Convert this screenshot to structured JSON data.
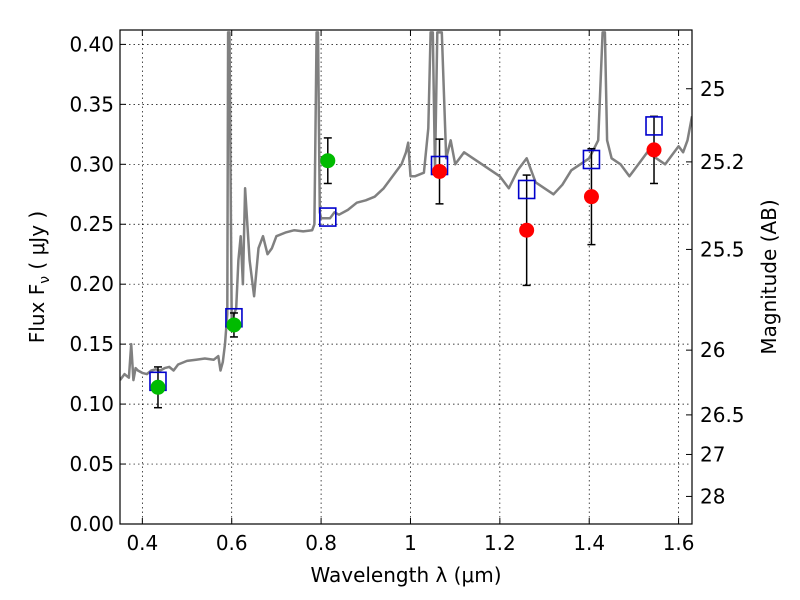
{
  "chart_data": {
    "type": "scatter",
    "xlabel": "Wavelength  λ (μm)",
    "ylabel": "Flux  F",
    "ylabel_sub": "ν",
    "ylabel_unit": "  ( μJy )",
    "right_ylabel": "Magnitude (AB)",
    "xlim": [
      0.35,
      1.63
    ],
    "ylim": [
      0.0,
      0.412
    ],
    "grid": true,
    "x_ticks": [
      0.4,
      0.6,
      0.8,
      1.0,
      1.2,
      1.4,
      1.6
    ],
    "x_tick_labels": [
      "0.4",
      "0.6",
      "0.8",
      "1",
      "1.2",
      "1.4",
      "1.6"
    ],
    "y_ticks": [
      0.0,
      0.05,
      0.1,
      0.15,
      0.2,
      0.25,
      0.3,
      0.35,
      0.4
    ],
    "y_tick_labels": [
      "0.00",
      "0.05",
      "0.10",
      "0.15",
      "0.20",
      "0.25",
      "0.30",
      "0.35",
      "0.40"
    ],
    "right_ticks": [
      {
        "label": "25",
        "flux": 0.363
      },
      {
        "label": "25.2",
        "flux": 0.302
      },
      {
        "label": "25.5",
        "flux": 0.229
      },
      {
        "label": "26",
        "flux": 0.145
      },
      {
        "label": "26.5",
        "flux": 0.091
      },
      {
        "label": "27",
        "flux": 0.058
      },
      {
        "label": "28",
        "flux": 0.023
      }
    ],
    "series": [
      {
        "marker": "line",
        "color": "#808080",
        "x": [
          0.35,
          0.36,
          0.37,
          0.375,
          0.38,
          0.385,
          0.39,
          0.4,
          0.41,
          0.42,
          0.43,
          0.44,
          0.45,
          0.46,
          0.47,
          0.48,
          0.5,
          0.52,
          0.54,
          0.56,
          0.57,
          0.575,
          0.58,
          0.585,
          0.59,
          0.592,
          0.595,
          0.6,
          0.61,
          0.615,
          0.62,
          0.625,
          0.63,
          0.64,
          0.65,
          0.66,
          0.67,
          0.68,
          0.69,
          0.7,
          0.72,
          0.74,
          0.76,
          0.78,
          0.785,
          0.79,
          0.793,
          0.797,
          0.8,
          0.82,
          0.83,
          0.84,
          0.86,
          0.88,
          0.9,
          0.92,
          0.94,
          0.96,
          0.98,
          0.99,
          0.995,
          1.0,
          1.01,
          1.03,
          1.04,
          1.045,
          1.05,
          1.055,
          1.06,
          1.07,
          1.08,
          1.09,
          1.1,
          1.12,
          1.14,
          1.16,
          1.18,
          1.2,
          1.22,
          1.24,
          1.26,
          1.28,
          1.3,
          1.32,
          1.34,
          1.36,
          1.38,
          1.4,
          1.42,
          1.43,
          1.435,
          1.44,
          1.45,
          1.47,
          1.49,
          1.51,
          1.53,
          1.55,
          1.57,
          1.59,
          1.6,
          1.61,
          1.62,
          1.63
        ],
        "y": [
          0.12,
          0.125,
          0.122,
          0.15,
          0.12,
          0.13,
          0.128,
          0.126,
          0.125,
          0.128,
          0.129,
          0.128,
          0.13,
          0.131,
          0.128,
          0.133,
          0.136,
          0.137,
          0.138,
          0.137,
          0.14,
          0.128,
          0.135,
          0.15,
          0.175,
          0.41,
          0.41,
          0.17,
          0.18,
          0.22,
          0.24,
          0.2,
          0.28,
          0.22,
          0.19,
          0.23,
          0.24,
          0.225,
          0.23,
          0.24,
          0.243,
          0.245,
          0.244,
          0.245,
          0.25,
          0.41,
          0.41,
          0.26,
          0.255,
          0.255,
          0.26,
          0.258,
          0.262,
          0.268,
          0.27,
          0.273,
          0.28,
          0.29,
          0.3,
          0.31,
          0.318,
          0.29,
          0.29,
          0.293,
          0.33,
          0.41,
          0.41,
          0.295,
          0.41,
          0.41,
          0.305,
          0.32,
          0.3,
          0.31,
          0.305,
          0.3,
          0.295,
          0.29,
          0.28,
          0.295,
          0.305,
          0.285,
          0.28,
          0.275,
          0.283,
          0.295,
          0.3,
          0.305,
          0.32,
          0.41,
          0.41,
          0.32,
          0.305,
          0.3,
          0.29,
          0.3,
          0.31,
          0.305,
          0.3,
          0.31,
          0.315,
          0.31,
          0.32,
          0.34
        ]
      },
      {
        "marker": "square",
        "color": "#0000cc",
        "x": [
          0.435,
          0.605,
          0.815,
          1.065,
          1.26,
          1.405,
          1.545
        ],
        "y": [
          0.119,
          0.172,
          0.256,
          0.299,
          0.279,
          0.304,
          0.332
        ]
      },
      {
        "marker": "circle",
        "color": "#00bb00",
        "x": [
          0.435,
          0.605,
          0.815
        ],
        "y": [
          0.114,
          0.166,
          0.303
        ],
        "yerr": [
          0.017,
          0.01,
          0.019
        ]
      },
      {
        "marker": "circle",
        "color": "#ff0000",
        "x": [
          1.065,
          1.26,
          1.405,
          1.545
        ],
        "y": [
          0.294,
          0.245,
          0.273,
          0.312
        ],
        "yerr": [
          0.027,
          0.046,
          0.04,
          0.028
        ]
      }
    ]
  }
}
